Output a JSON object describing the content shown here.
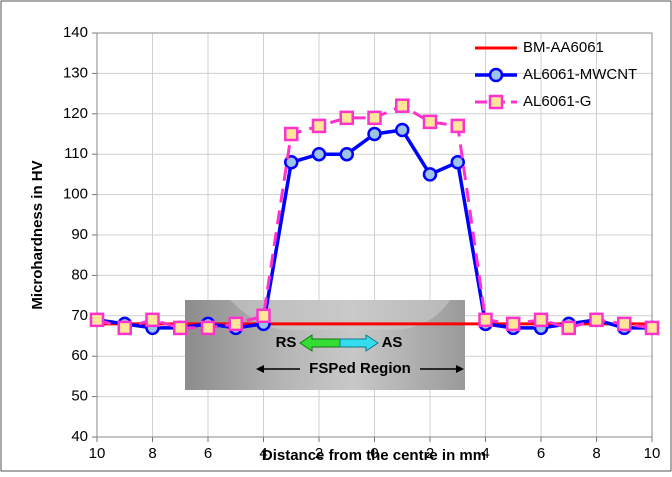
{
  "chart_data": {
    "type": "line",
    "xlabel": "Distance from the centre in mm",
    "ylabel": "Microhardness in HV",
    "xlim": [
      -10,
      10
    ],
    "xticks": [
      {
        "value": -10,
        "label": "10"
      },
      {
        "value": -8,
        "label": "8"
      },
      {
        "value": -6,
        "label": "6"
      },
      {
        "value": -4,
        "label": "4"
      },
      {
        "value": -2,
        "label": "2"
      },
      0,
      2,
      4,
      6,
      8,
      10
    ],
    "ylim": [
      40,
      140
    ],
    "yticks": [
      40,
      50,
      60,
      70,
      80,
      90,
      100,
      110,
      120,
      130,
      140
    ],
    "grid": true,
    "legend": "top-right",
    "annotations": [
      "RS",
      "AS",
      "FSPed Region"
    ],
    "series": [
      {
        "name": "BM-AA6061",
        "color": "#ff0000",
        "x": [
          -10,
          10
        ],
        "values": [
          68,
          68
        ]
      },
      {
        "name": "AL6061-MWCNT",
        "color": "#0000ff",
        "x": [
          -10,
          -9,
          -8,
          -7,
          -6,
          -5,
          -4,
          -3,
          -2,
          -1,
          0,
          1,
          2,
          3,
          4,
          5,
          6,
          7,
          8,
          9,
          10
        ],
        "values": [
          69,
          68,
          67,
          67,
          68,
          67,
          68,
          108,
          110,
          110,
          115,
          116,
          105,
          108,
          68,
          67,
          67,
          68,
          69,
          67,
          67
        ]
      },
      {
        "name": "AL6061-G",
        "color": "#ff33cc",
        "x": [
          -10,
          -9,
          -8,
          -7,
          -6,
          -5,
          -4,
          -3,
          -2,
          -1,
          0,
          1,
          2,
          3,
          4,
          5,
          6,
          7,
          8,
          9,
          10
        ],
        "values": [
          69,
          67,
          69,
          67,
          67,
          68,
          70,
          115,
          117,
          119,
          119,
          122,
          118,
          117,
          69,
          68,
          69,
          67,
          69,
          68,
          67
        ]
      }
    ]
  }
}
